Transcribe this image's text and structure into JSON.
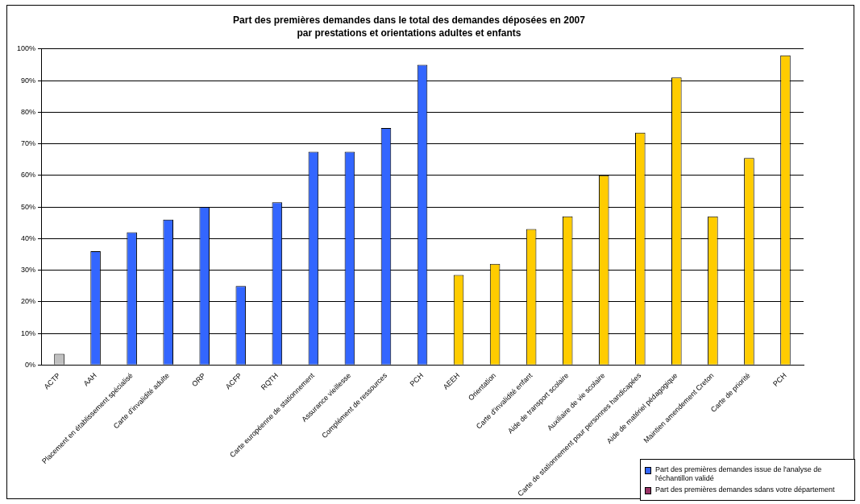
{
  "chart_data": {
    "type": "bar",
    "title": "Part des premières demandes dans le total des demandes déposées en 2007",
    "subtitle": "par prestations et orientations adultes et enfants",
    "categories": [
      "ACTP",
      "AAH",
      "Placement en établissement spécialisé",
      "Carte d'invalidité adulte",
      "ORP",
      "ACFP",
      "RQTH",
      "Carte européenne de stationnement",
      "Assurance vieillesse",
      "Complément de ressources",
      "PCH",
      "AEEH",
      "Orientation",
      "Carte d'invalidité enfant",
      "Aide de transport scolaire",
      "Auxiliaire de vie scolaire",
      "Carte de stationnement pour personnes handicapées",
      "Aide de matériel pédagogique",
      "Maintien amendement Creton",
      "Carte de priorité",
      "PCH"
    ],
    "series": [
      {
        "name": "Part des premières demandes issue de l'analyse de l'échantillon validé",
        "color": "#3366ff",
        "colors": [
          "#c0c0c0",
          "#3366ff",
          "#3366ff",
          "#3366ff",
          "#3366ff",
          "#3366ff",
          "#3366ff",
          "#3366ff",
          "#3366ff",
          "#3366ff",
          "#3366ff",
          "#ffcc00",
          "#ffcc00",
          "#ffcc00",
          "#ffcc00",
          "#ffcc00",
          "#ffcc00",
          "#ffcc00",
          "#ffcc00",
          "#ffcc00",
          "#ffcc00"
        ],
        "values": [
          3.5,
          36,
          42,
          46,
          50,
          25,
          51.5,
          67.5,
          67.5,
          75,
          95,
          28.5,
          32,
          43,
          47,
          60,
          73.5,
          91,
          47,
          65.5,
          98
        ]
      },
      {
        "name": "Part des premières demandes sdans votre département",
        "color": "#993366",
        "values": [
          null,
          null,
          null,
          null,
          null,
          null,
          null,
          null,
          null,
          null,
          null,
          null,
          null,
          null,
          null,
          null,
          null,
          null,
          null,
          null,
          null
        ]
      }
    ],
    "ylim": [
      0,
      100
    ],
    "yticks": [
      {
        "value": 0,
        "label": "0%"
      },
      {
        "value": 10,
        "label": "10%"
      },
      {
        "value": 20,
        "label": "20%"
      },
      {
        "value": 30,
        "label": "30%"
      },
      {
        "value": 40,
        "label": "40%"
      },
      {
        "value": 50,
        "label": "50%"
      },
      {
        "value": 60,
        "label": "60%"
      },
      {
        "value": 70,
        "label": "70%"
      },
      {
        "value": 80,
        "label": "80%"
      },
      {
        "value": 90,
        "label": "90%"
      },
      {
        "value": 100,
        "label": "100%"
      }
    ],
    "grid": "y",
    "legend": "bottom right"
  }
}
